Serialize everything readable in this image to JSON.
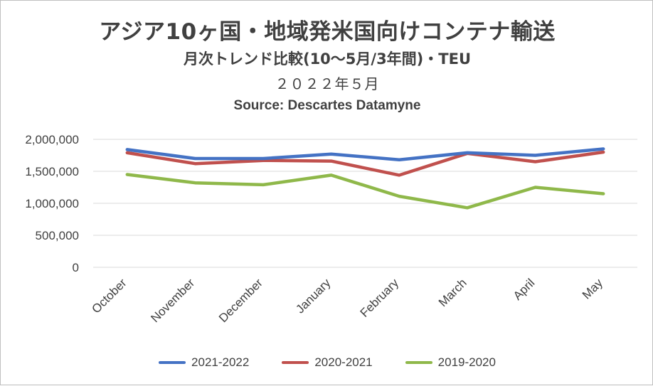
{
  "chart_data": {
    "type": "line",
    "title": "アジア10ヶ国・地域発米国向けコンテナ輸送",
    "subtitle": "月次トレンド比較(10～5月/3年間)・TEU",
    "date_label": "２０２２年５月",
    "source": "Source: Descartes Datamyne",
    "categories": [
      "October",
      "November",
      "December",
      "January",
      "February",
      "March",
      "April",
      "May"
    ],
    "y_ticks": [
      "0",
      "500,000",
      "1,000,000",
      "1,500,000",
      "2,000,000"
    ],
    "ylim": [
      0,
      2000000
    ],
    "grid": true,
    "legend_position": "bottom",
    "series": [
      {
        "name": "2021-2022",
        "color": "#4472c4",
        "values": [
          1840000,
          1700000,
          1700000,
          1770000,
          1680000,
          1790000,
          1750000,
          1850000
        ]
      },
      {
        "name": "2020-2021",
        "color": "#c0504d",
        "values": [
          1790000,
          1620000,
          1670000,
          1660000,
          1440000,
          1780000,
          1650000,
          1800000
        ]
      },
      {
        "name": "2019-2020",
        "color": "#8fb84a",
        "values": [
          1450000,
          1320000,
          1290000,
          1440000,
          1110000,
          930000,
          1250000,
          1150000
        ]
      }
    ]
  }
}
